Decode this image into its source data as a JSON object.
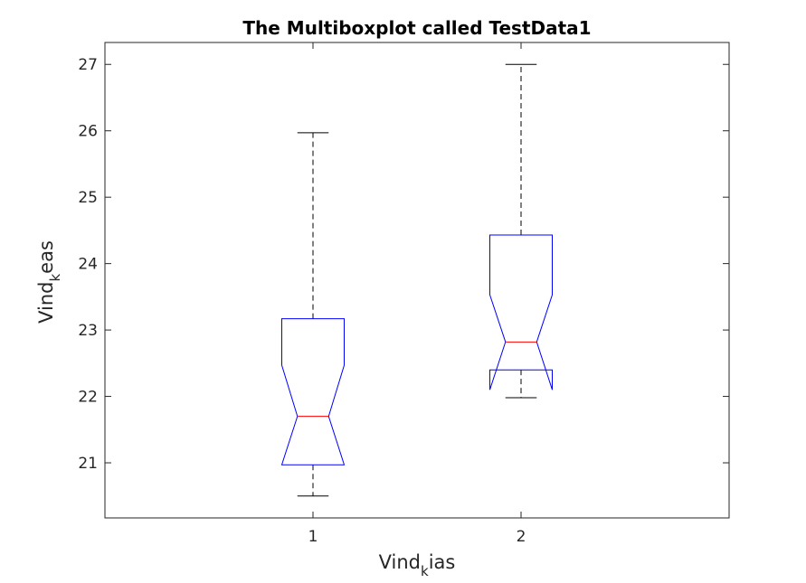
{
  "chart_data": {
    "type": "boxplot",
    "title": "The Multiboxplot called TestData1",
    "xlabel": {
      "base": "Vind",
      "sub": "k",
      "rest": "ias"
    },
    "ylabel": {
      "base": "Vind",
      "sub": "k",
      "rest": "eas"
    },
    "categories": [
      "1",
      "2"
    ],
    "ylim": [
      20.17,
      27.33
    ],
    "yticks": [
      21,
      22,
      23,
      24,
      25,
      26,
      27
    ],
    "grid": false,
    "notched": true,
    "colors": {
      "box": "#0000ff",
      "median": "#ff0000",
      "whisker": "#000000",
      "axis": "#262626"
    },
    "boxes": [
      {
        "category": "1",
        "min": 20.5,
        "q1": 20.97,
        "median": 21.7,
        "q3": 23.17,
        "max": 25.97,
        "notch_low": 20.97,
        "notch_high": 22.47
      },
      {
        "category": "2",
        "min": 21.98,
        "q1": 22.4,
        "median": 22.82,
        "q3": 24.43,
        "max": 27.0,
        "notch_low": 22.1,
        "notch_high": 23.53
      }
    ]
  }
}
